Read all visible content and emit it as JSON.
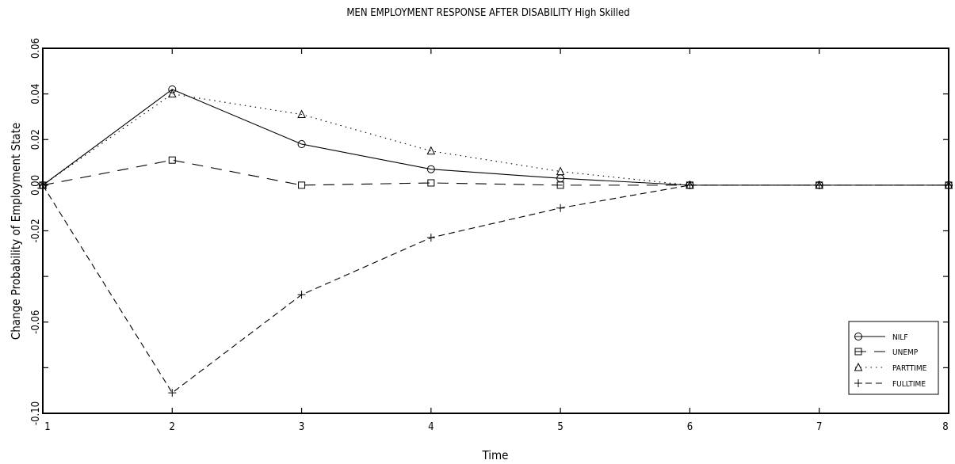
{
  "chart_data": {
    "type": "line",
    "title": "MEN EMPLOYMENT RESPONSE AFTER DISABILITY High Skilled",
    "xlabel": "Time",
    "ylabel": "Change Probability of Employment State",
    "xlim": [
      1,
      8
    ],
    "ylim": [
      -0.1,
      0.06
    ],
    "x_ticks": [
      1,
      2,
      3,
      4,
      5,
      6,
      7,
      8
    ],
    "x_tick_labels": [
      "1",
      "2",
      "3",
      "4",
      "5",
      "6",
      "7",
      "8"
    ],
    "y_ticks": [
      -0.1,
      -0.08,
      -0.06,
      -0.04,
      -0.02,
      0.0,
      0.02,
      0.04,
      0.06
    ],
    "y_tick_labels": [
      "-0.10",
      "",
      "-0.06",
      "",
      "-0.02",
      "0.00",
      "0.02",
      "0.04",
      "0.06"
    ],
    "grid": false,
    "legend_position": "bottom-right",
    "x": [
      1,
      2,
      3,
      4,
      5,
      6,
      7,
      8
    ],
    "series": [
      {
        "name": "NILF",
        "marker": "circle",
        "dash": "solid",
        "values": [
          0.0,
          0.042,
          0.018,
          0.007,
          0.003,
          0.0,
          0.0,
          0.0
        ]
      },
      {
        "name": "UNEMP",
        "marker": "square",
        "dash": "longdash",
        "values": [
          0.0,
          0.011,
          0.0,
          0.001,
          0.0,
          0.0,
          0.0,
          0.0
        ]
      },
      {
        "name": "PARTTIME",
        "marker": "triangle",
        "dash": "dotted",
        "values": [
          0.0,
          0.04,
          0.031,
          0.015,
          0.006,
          0.0,
          0.0,
          0.0
        ]
      },
      {
        "name": "FULLTIME",
        "marker": "plus",
        "dash": "dashed",
        "values": [
          0.0,
          -0.091,
          -0.048,
          -0.023,
          -0.01,
          0.0,
          0.0,
          0.0
        ]
      }
    ]
  }
}
